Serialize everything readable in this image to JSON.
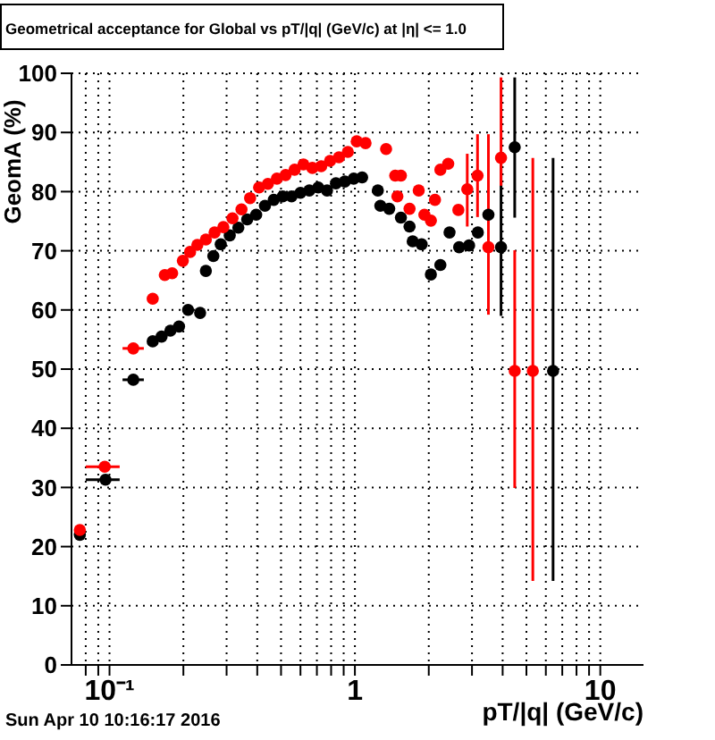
{
  "chart_data": {
    "type": "scatter",
    "title": "Geometrical acceptance for Global vs pT/|q| (GeV/c) at |η| <= 1.0",
    "xlabel": "pT/|q| (GeV/c)",
    "ylabel": "GeomA (%)",
    "annotations": [
      "Sun Apr 10 10:16:17 2016"
    ],
    "log": "x",
    "grid": true,
    "marker": "circle",
    "xlim": [
      0.07,
      15
    ],
    "xticks": [
      {
        "value": 0.08,
        "label": null
      },
      {
        "value": 0.09,
        "label": null
      },
      {
        "value": 0.1,
        "label": "10⁻¹"
      },
      {
        "value": 0.2,
        "label": null
      },
      {
        "value": 0.3,
        "label": null
      },
      {
        "value": 0.4,
        "label": null
      },
      {
        "value": 0.5,
        "label": null
      },
      {
        "value": 0.6,
        "label": null
      },
      {
        "value": 0.7,
        "label": null
      },
      {
        "value": 0.8,
        "label": null
      },
      {
        "value": 0.9,
        "label": null
      },
      1,
      {
        "value": 2,
        "label": null
      },
      {
        "value": 3,
        "label": null
      },
      {
        "value": 4,
        "label": null
      },
      {
        "value": 5,
        "label": null
      },
      {
        "value": 6,
        "label": null
      },
      {
        "value": 7,
        "label": null
      },
      {
        "value": 8,
        "label": null
      },
      {
        "value": 9,
        "label": null
      },
      10
    ],
    "ylim": [
      0,
      100
    ],
    "yticks": [
      0,
      10,
      20,
      30,
      40,
      50,
      60,
      70,
      80,
      90,
      100
    ],
    "series": [
      {
        "color": "#000000",
        "x": [
          0.0757,
          0.0963,
          0.125,
          0.15,
          0.163,
          0.177,
          0.192,
          0.209,
          0.234,
          0.247,
          0.265,
          0.284,
          0.309,
          0.335,
          0.364,
          0.396,
          0.43,
          0.467,
          0.508,
          0.552,
          0.6,
          0.652,
          0.709,
          0.77,
          0.837,
          0.91,
          0.989,
          1.07,
          1.24,
          1.27,
          1.38,
          1.54,
          1.67,
          1.72,
          1.87,
          2.04,
          2.23,
          2.43,
          2.66,
          2.92,
          3.17,
          3.5,
          3.94,
          4.48,
          6.42
        ],
        "values": [
          22.0,
          31.3,
          48.2,
          54.7,
          55.5,
          56.5,
          57.2,
          60.0,
          59.5,
          66.6,
          69.1,
          71.1,
          72.6,
          73.9,
          75.3,
          76.1,
          77.6,
          78.6,
          79.2,
          79.2,
          79.8,
          80.2,
          80.7,
          80.2,
          81.4,
          81.7,
          82.2,
          82.4,
          80.2,
          77.6,
          77.1,
          75.6,
          74.1,
          71.6,
          71.1,
          66.0,
          67.6,
          73.1,
          70.6,
          70.9,
          73.1,
          76.1,
          70.6,
          87.5,
          49.7
        ],
        "errors": [
          null,
          null,
          null,
          null,
          null,
          null,
          null,
          null,
          null,
          null,
          null,
          null,
          null,
          null,
          null,
          null,
          null,
          null,
          null,
          null,
          null,
          null,
          null,
          null,
          null,
          null,
          null,
          null,
          null,
          null,
          null,
          null,
          null,
          null,
          null,
          null,
          null,
          null,
          null,
          null,
          null,
          null,
          [
            59.0,
            85.7
          ],
          [
            75.6,
            99.3
          ],
          [
            14.2,
            85.7
          ]
        ],
        "xerrors": [
          null,
          [
            0.08,
            0.11
          ],
          [
            0.113,
            0.138
          ],
          null,
          null,
          null,
          null,
          null,
          null,
          null,
          null,
          null,
          null,
          null,
          null,
          null,
          null,
          null,
          null,
          null,
          null,
          null,
          null,
          null,
          null,
          null,
          null,
          null,
          null,
          null,
          null,
          null,
          null,
          null,
          null,
          null,
          null,
          null,
          null,
          null,
          null,
          null,
          null,
          null,
          null
        ]
      },
      {
        "color": "#ff0000",
        "x": [
          0.0757,
          0.0956,
          0.125,
          0.15,
          0.168,
          0.18,
          0.199,
          0.213,
          0.228,
          0.247,
          0.268,
          0.291,
          0.317,
          0.345,
          0.374,
          0.407,
          0.442,
          0.481,
          0.522,
          0.568,
          0.617,
          0.671,
          0.729,
          0.792,
          0.861,
          0.936,
          1.017,
          1.105,
          1.34,
          1.46,
          1.49,
          1.54,
          1.67,
          1.82,
          1.92,
          2.04,
          2.12,
          2.23,
          2.4,
          2.64,
          2.87,
          3.16,
          3.5,
          3.94,
          4.48,
          5.31
        ],
        "values": [
          22.8,
          33.5,
          53.5,
          61.9,
          65.9,
          66.2,
          68.3,
          69.8,
          71.0,
          71.9,
          73.1,
          74.0,
          75.5,
          77.0,
          78.9,
          80.7,
          81.3,
          82.2,
          82.8,
          83.7,
          84.6,
          84.0,
          84.3,
          85.2,
          85.8,
          86.7,
          88.5,
          88.2,
          87.2,
          82.7,
          79.2,
          82.7,
          77.1,
          80.2,
          76.1,
          75.1,
          78.6,
          83.7,
          84.7,
          76.9,
          80.4,
          82.7,
          70.6,
          85.7,
          49.7,
          49.7
        ],
        "errors": [
          null,
          null,
          null,
          null,
          null,
          null,
          null,
          null,
          null,
          null,
          null,
          null,
          null,
          null,
          null,
          null,
          null,
          null,
          null,
          null,
          null,
          null,
          null,
          null,
          null,
          null,
          null,
          null,
          null,
          null,
          null,
          null,
          null,
          null,
          null,
          null,
          null,
          null,
          null,
          null,
          [
            74.1,
            86.4
          ],
          7,
          [
            59.2,
            89.7
          ],
          [
            81.0,
            99.3
          ],
          [
            29.9,
            70.1
          ],
          [
            14.2,
            85.7
          ]
        ],
        "xerrors": [
          null,
          [
            0.08,
            0.11
          ],
          [
            0.113,
            0.138
          ],
          null,
          null,
          null,
          null,
          null,
          null,
          null,
          null,
          null,
          null,
          null,
          null,
          null,
          null,
          null,
          null,
          null,
          null,
          null,
          null,
          null,
          null,
          null,
          null,
          null,
          null,
          null,
          null,
          null,
          null,
          null,
          null,
          null,
          null,
          null,
          null,
          null,
          null,
          null,
          null,
          null,
          null,
          null
        ]
      }
    ]
  }
}
